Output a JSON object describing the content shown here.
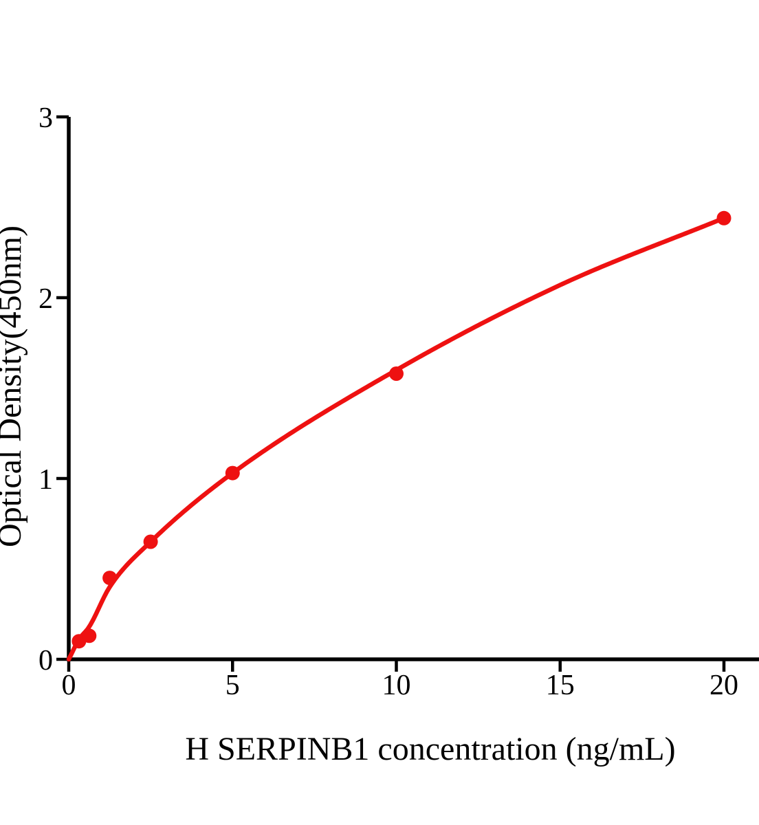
{
  "figure": {
    "background_color": "#ffffff",
    "axis_color": "#000000",
    "accent_color": "#ee1111"
  },
  "chart_data": {
    "type": "scatter",
    "title": "",
    "xlabel": "H SERPINB1 concentration (ng/mL)",
    "ylabel": "Optical Density(450nm)",
    "xlim": [
      0,
      20
    ],
    "ylim": [
      0,
      3
    ],
    "x_ticks": [
      0,
      5,
      10,
      15,
      20
    ],
    "y_ticks": [
      0,
      1,
      2,
      3
    ],
    "grid": false,
    "legend": "none",
    "series": [
      {
        "name": "H SERPINB1 standard points",
        "marker": "circle",
        "color": "#ee1111",
        "points": [
          {
            "x": 0.3125,
            "y": 0.1
          },
          {
            "x": 0.625,
            "y": 0.13
          },
          {
            "x": 1.25,
            "y": 0.45
          },
          {
            "x": 2.5,
            "y": 0.65
          },
          {
            "x": 5,
            "y": 1.03
          },
          {
            "x": 10,
            "y": 1.58
          },
          {
            "x": 20,
            "y": 2.44
          }
        ]
      }
    ],
    "fit_curve": {
      "name": "fitted standard curve",
      "color": "#ee1111",
      "points": [
        {
          "x": 0,
          "y": 0.0
        },
        {
          "x": 0.3125,
          "y": 0.11
        },
        {
          "x": 0.625,
          "y": 0.18
        },
        {
          "x": 1.25,
          "y": 0.4
        },
        {
          "x": 2.5,
          "y": 0.65
        },
        {
          "x": 5,
          "y": 1.03
        },
        {
          "x": 10,
          "y": 1.6
        },
        {
          "x": 15,
          "y": 2.07
        },
        {
          "x": 20,
          "y": 2.44
        }
      ]
    }
  }
}
